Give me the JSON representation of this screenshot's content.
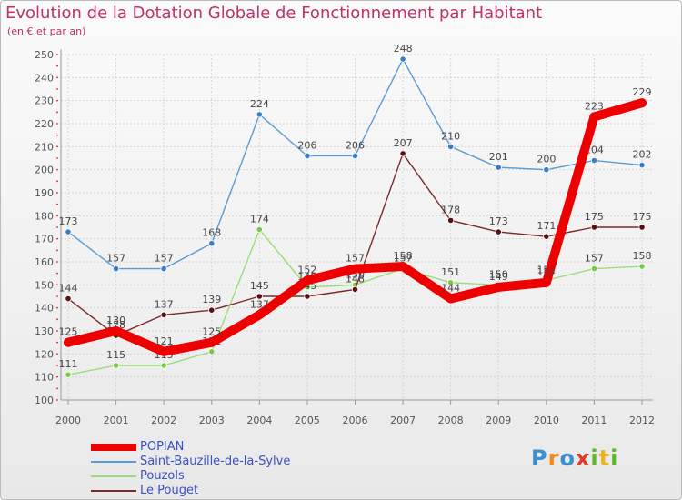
{
  "title": "Evolution de la Dotation Globale de Fonctionnement par Habitant",
  "subtitle": "(en € et par an)",
  "chart_data": {
    "type": "line",
    "x": [
      "2000",
      "2001",
      "2002",
      "2003",
      "2004",
      "2005",
      "2006",
      "2007",
      "2008",
      "2009",
      "2010",
      "2011",
      "2012"
    ],
    "ylim": [
      100,
      250
    ],
    "yticks": [
      100,
      110,
      120,
      130,
      140,
      150,
      160,
      170,
      180,
      190,
      200,
      210,
      220,
      230,
      240,
      250
    ],
    "grid": true,
    "legend_position": "bottom-left",
    "series": [
      {
        "name": "Saint-Bauzille-de-la-Sylve",
        "color": "#5b9bd5",
        "marker": "#3a7fc6",
        "values": [
          173,
          157,
          157,
          168,
          224,
          206,
          206,
          248,
          210,
          201,
          200,
          204,
          202
        ],
        "labels": [
          "173",
          "157",
          "157",
          "168",
          "224",
          "206",
          "206",
          "248",
          "210",
          "201",
          "200",
          "204",
          "202"
        ]
      },
      {
        "name": "Pouzols",
        "color": "#99dd77",
        "marker": "#77cc44",
        "values": [
          111,
          115,
          115,
          121,
          174,
          149,
          150,
          157,
          151,
          150,
          152,
          157,
          158
        ],
        "labels": [
          "111",
          "115",
          "115",
          "121",
          "174",
          "149",
          "150",
          "157",
          "151",
          "150",
          "152",
          "157",
          "158"
        ]
      },
      {
        "name": "Le Pouget",
        "color": "#7a2a2a",
        "marker": "#5a1010",
        "values": [
          144,
          128,
          137,
          139,
          145,
          145,
          148,
          207,
          178,
          173,
          171,
          175,
          175
        ],
        "labels": [
          "144",
          "128",
          "137",
          "139",
          "145",
          "145",
          "148",
          "207",
          "178",
          "173",
          "171",
          "175",
          "175"
        ]
      },
      {
        "name": "POPIAN",
        "color": "#ee0000",
        "marker": "#ee0000",
        "values": [
          125,
          130,
          121,
          125,
          137,
          152,
          157,
          158,
          144,
          149,
          151,
          223,
          229
        ],
        "labels": [
          "125",
          "130",
          "121",
          "125",
          "137",
          "152",
          "157",
          "158",
          "144",
          "149",
          "151",
          "223",
          "229"
        ]
      }
    ],
    "legend": [
      {
        "name": "POPIAN",
        "color": "#ee0000",
        "thickness": "thick"
      },
      {
        "name": "Saint-Bauzille-de-la-Sylve",
        "color": "#5b9bd5",
        "thickness": "thin"
      },
      {
        "name": "Pouzols",
        "color": "#99dd77",
        "thickness": "thin"
      },
      {
        "name": "Le Pouget",
        "color": "#7a2a2a",
        "thickness": "thin"
      }
    ]
  },
  "logo": {
    "letters": [
      "P",
      "r",
      "o",
      "x",
      "i",
      "t",
      "i"
    ],
    "colors": [
      "#3a8fd0",
      "#f08a1c",
      "#3a8fd0",
      "#e03a2a",
      "#5cb82a",
      "#f0b020",
      "#5cb82a"
    ]
  }
}
